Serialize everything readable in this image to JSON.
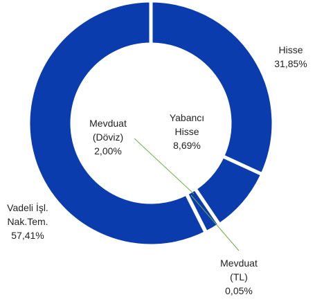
{
  "chart_data": {
    "type": "donut",
    "color": "#0a3cae",
    "categories": [
      "Hisse",
      "Yabancı Hisse",
      "Mevduat (Döviz)",
      "Mevduat (TL)",
      "Vadeli İşl. Nak.Tem."
    ],
    "values": [
      31.85,
      8.69,
      2.0,
      0.05,
      57.41
    ],
    "value_labels": [
      "31,85%",
      "8,69%",
      "2,00%",
      "0,05%",
      "57,41%"
    ]
  }
}
